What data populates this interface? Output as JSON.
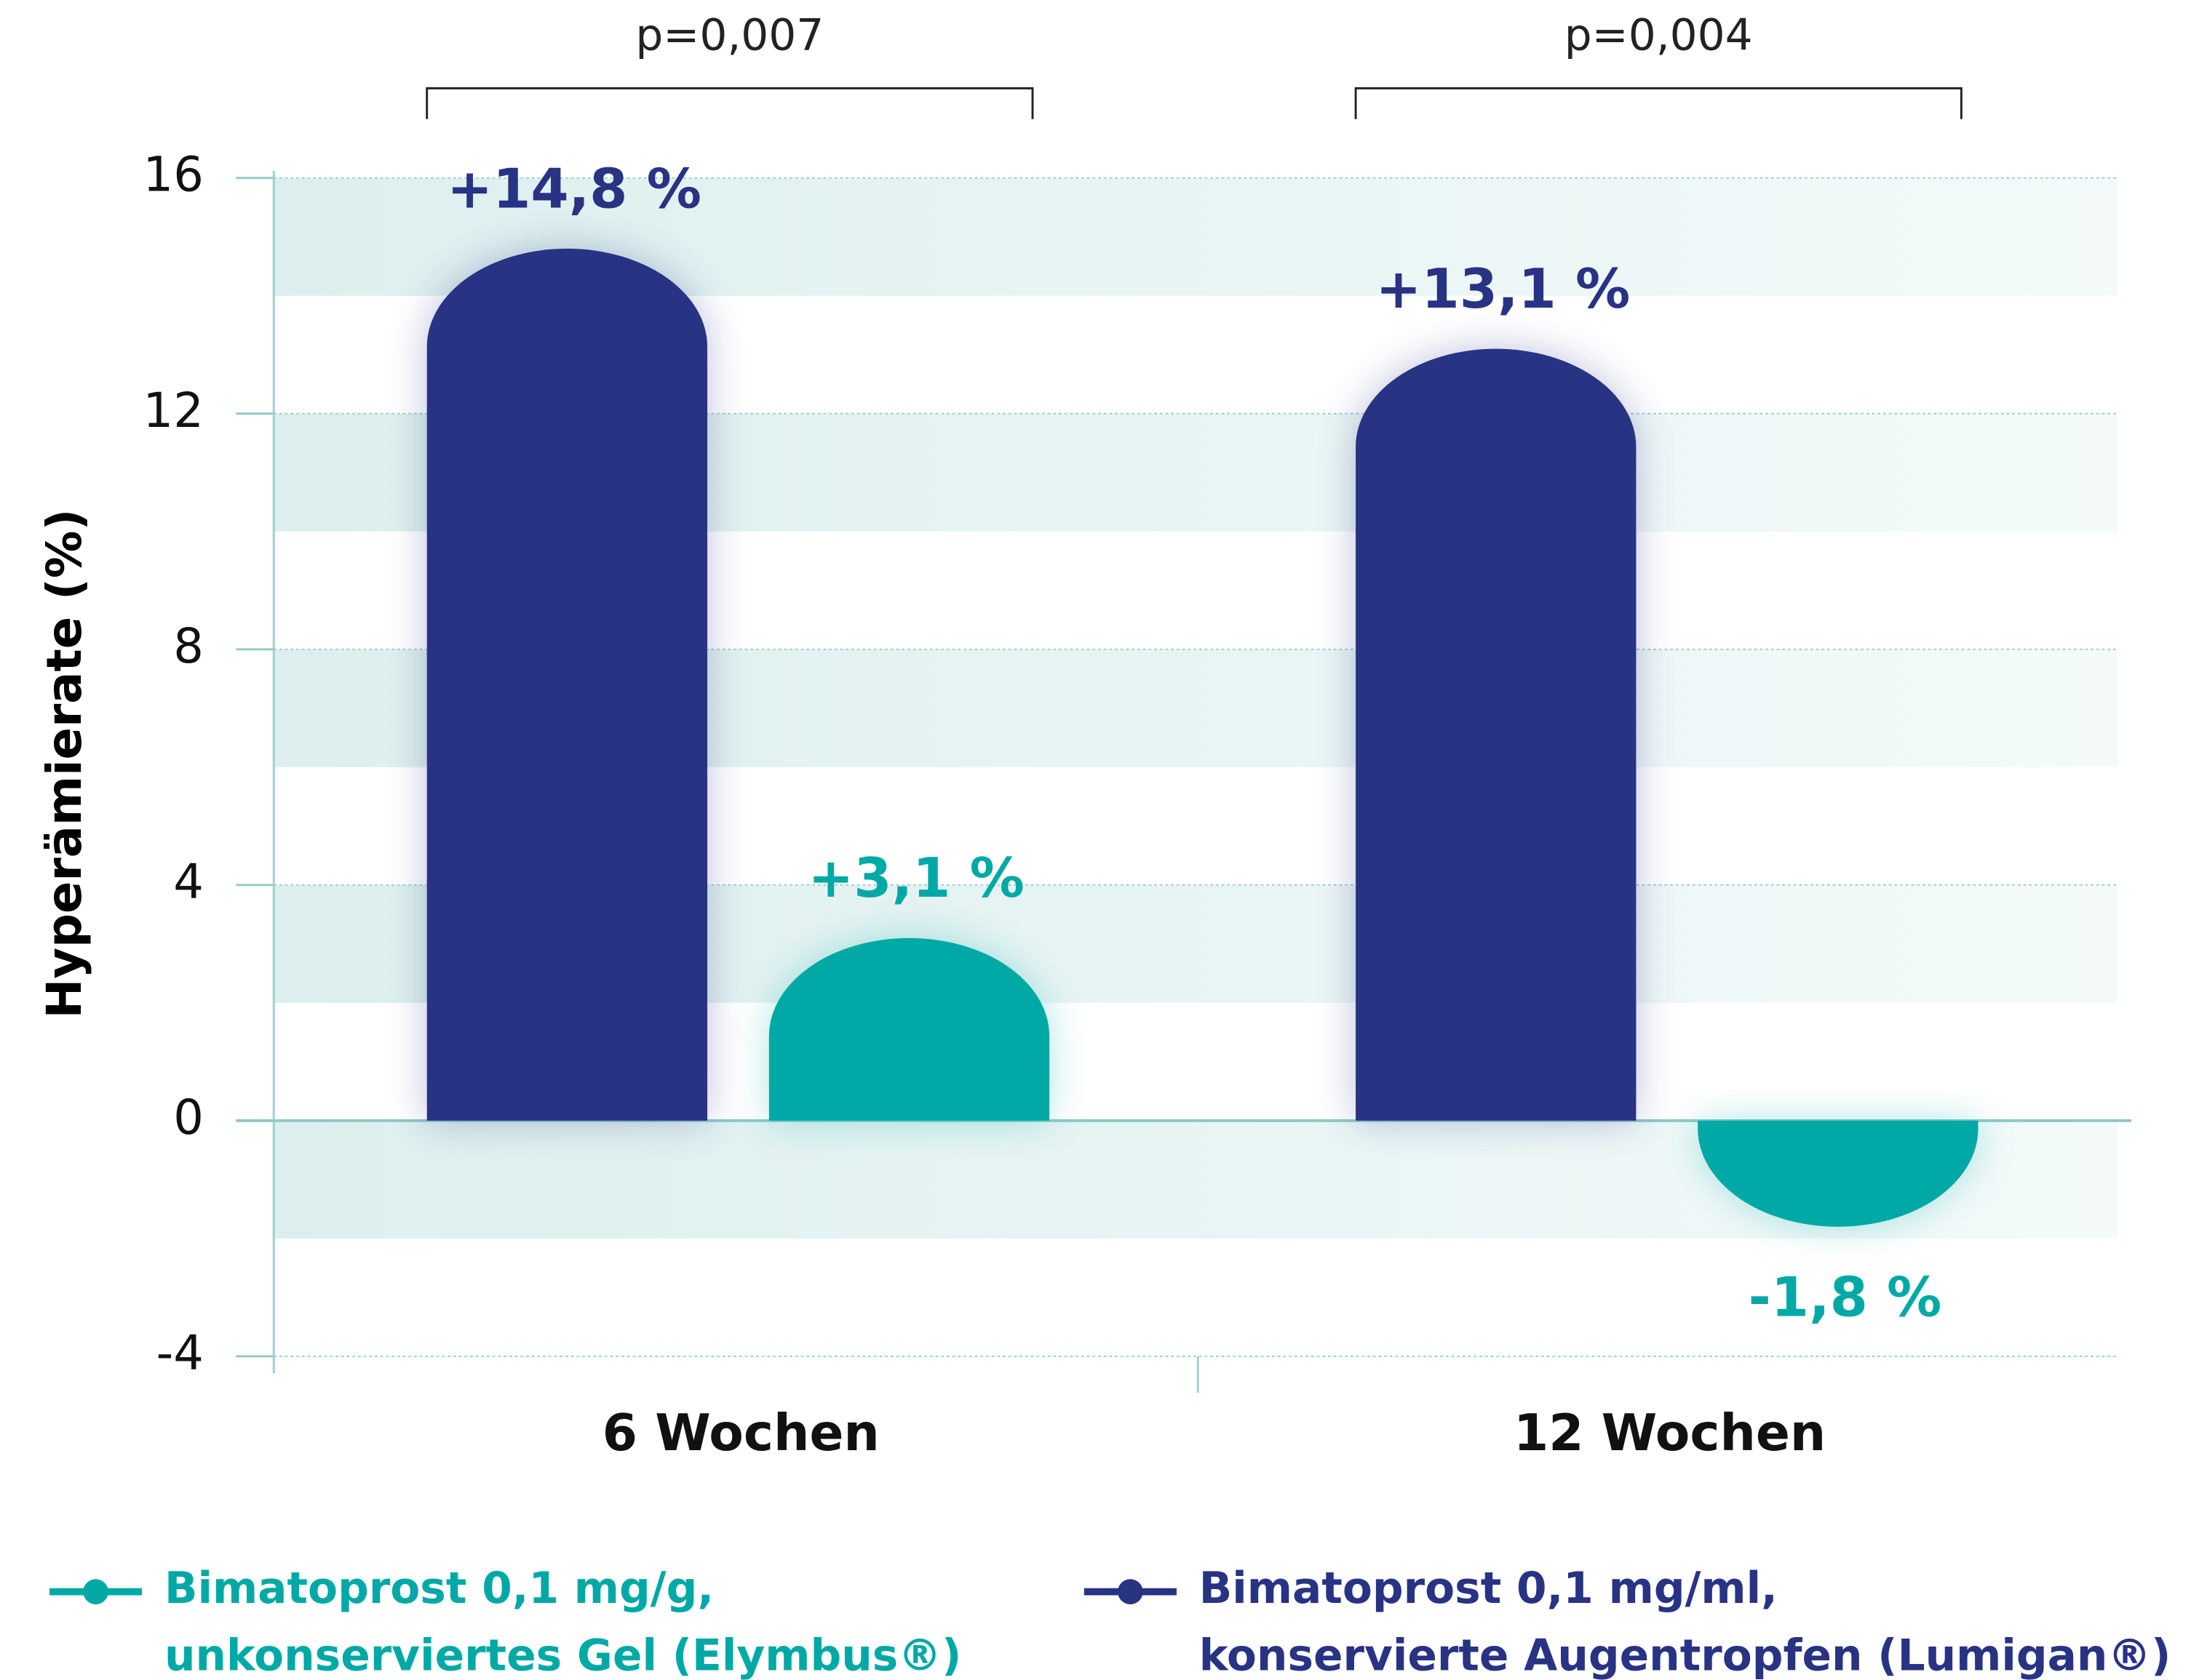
{
  "chart_data": {
    "type": "bar",
    "y_label": "Hyperämierate (%)",
    "categories": [
      "6 Wochen",
      "12 Wochen"
    ],
    "annotations": [
      "p=0,007",
      "p=0,004"
    ],
    "series": [
      {
        "name": "Bimatoprost 0,1 mg/g,\nunkonserviertes Gel (Elymbus®)",
        "color": "#00a9a5",
        "values": [
          3.1,
          -1.8
        ],
        "value_labels": [
          "+3,1 %",
          "-1,8 %"
        ]
      },
      {
        "name": "Bimatoprost 0,1 mg/ml,\nkonservierte Augentropfen (Lumigan®)",
        "color": "#283384",
        "values": [
          14.8,
          13.1
        ],
        "value_labels": [
          "+14,8 %",
          "+13,1 %"
        ]
      }
    ],
    "ylim": [
      -4,
      16
    ],
    "yticks": [
      -4,
      0,
      4,
      8,
      12,
      16
    ],
    "grid": true,
    "legend": "bottom"
  }
}
